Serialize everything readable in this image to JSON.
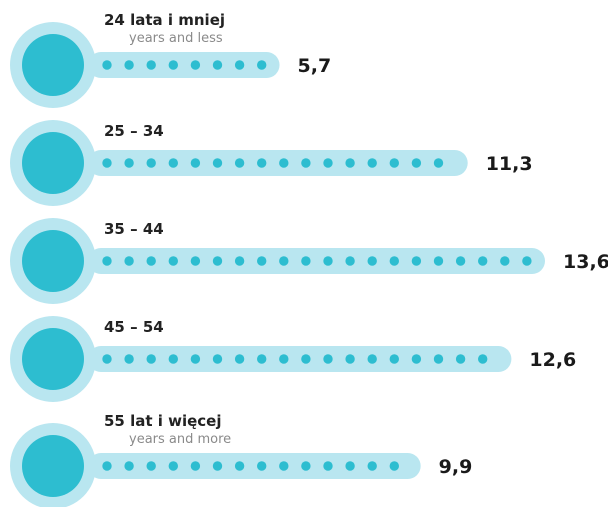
{
  "chart_data": {
    "type": "bar",
    "orientation": "horizontal",
    "style": "thermometer",
    "categories": [
      {
        "label": "24 lata i mniej",
        "sublabel": "years and less"
      },
      {
        "label": "25 – 34",
        "sublabel": ""
      },
      {
        "label": "35 – 44",
        "sublabel": ""
      },
      {
        "label": "45 – 54",
        "sublabel": ""
      },
      {
        "label": "55 lat i więcej",
        "sublabel": "years and more"
      }
    ],
    "values": [
      5.7,
      11.3,
      13.6,
      12.6,
      9.9
    ],
    "value_labels": [
      "5,7",
      "11,3",
      "13,6",
      "12,6",
      "9,9"
    ],
    "xlim": [
      0,
      13.6
    ],
    "colors": {
      "bulb_outer": "#b9e6f0",
      "bulb_inner": "#2dbdd0",
      "tube": "#b9e6f0",
      "dot": "#2dbdd0"
    }
  }
}
